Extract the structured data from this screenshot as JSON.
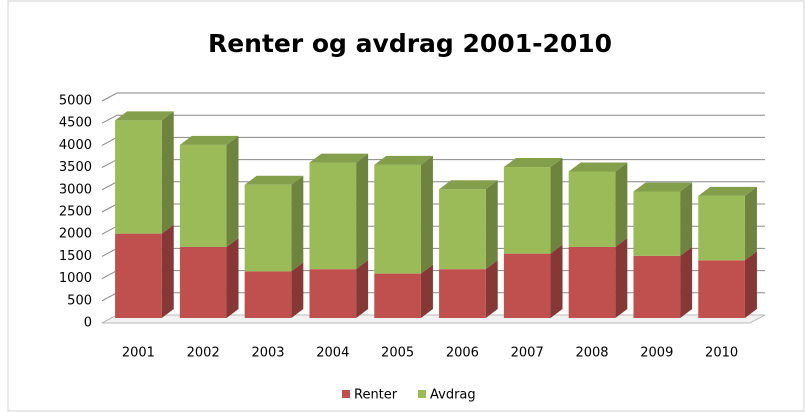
{
  "chart_data": {
    "type": "bar",
    "stacked": true,
    "title": "Renter og avdrag 2001-2010",
    "categories": [
      "2001",
      "2002",
      "2003",
      "2004",
      "2005",
      "2006",
      "2007",
      "2008",
      "2009",
      "2010"
    ],
    "series": [
      {
        "name": "Renter",
        "color": "#c0504d",
        "values": [
          1900,
          1600,
          1050,
          1100,
          1000,
          1100,
          1450,
          1600,
          1400,
          1300
        ]
      },
      {
        "name": "Avdrag",
        "color": "#9bbb59",
        "values": [
          2550,
          2300,
          1950,
          2400,
          2450,
          1800,
          1950,
          1700,
          1450,
          1450
        ]
      }
    ],
    "ylim": [
      0,
      5000
    ],
    "yticks": [
      0,
      500,
      1000,
      1500,
      2000,
      2500,
      3000,
      3500,
      4000,
      4500,
      5000
    ],
    "grid": true,
    "legend": "bottom"
  }
}
